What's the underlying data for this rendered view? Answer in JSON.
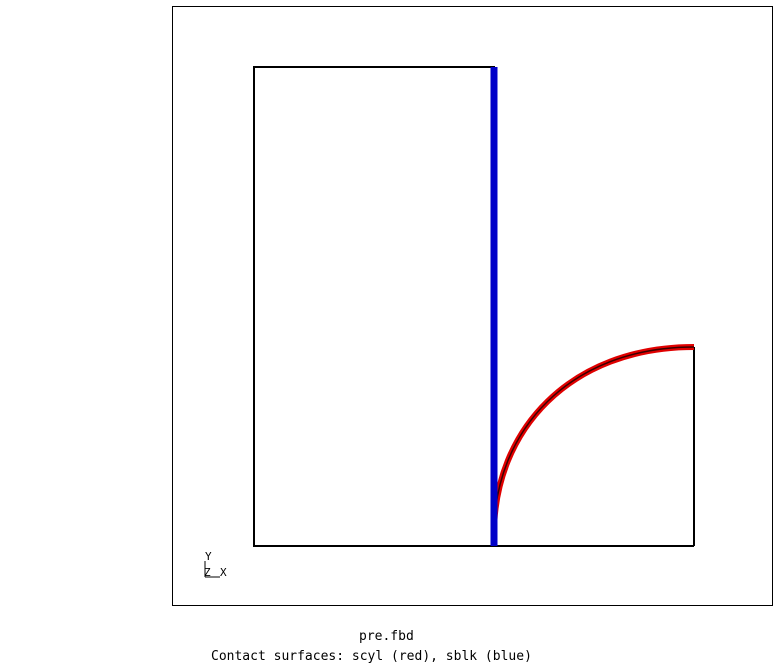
{
  "caption": {
    "title": "pre.fbd",
    "subtitle": "Contact surfaces: scyl (red), sblk (blue)"
  },
  "triad": {
    "y_label": "Y",
    "z_label": "Z",
    "x_label": "X"
  },
  "colors": {
    "outline": "#000000",
    "surface_scyl": "#e00000",
    "surface_sblk": "#0000c8",
    "background": "#ffffff"
  }
}
